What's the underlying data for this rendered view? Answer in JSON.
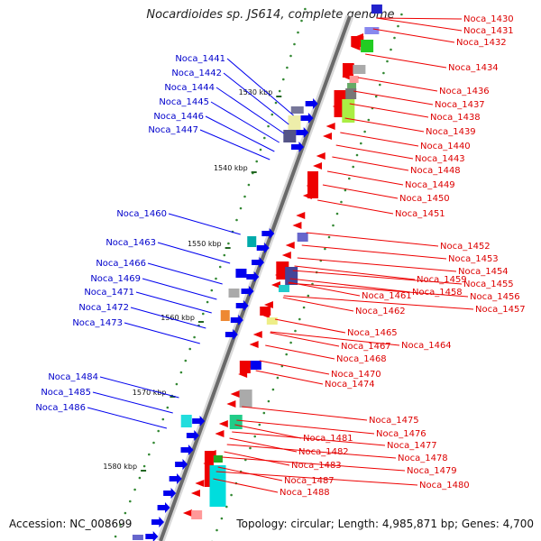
{
  "title": "Nocardioides sp. JS614, complete genome",
  "footer": {
    "accession": "Accession: NC_008699",
    "topology": "Topology: circular; Length: 4,985,871 bp; Genes: 4,700"
  },
  "ticks": [
    "1530 kbp",
    "1540 kbp",
    "1550 kbp",
    "1560 kbp",
    "1570 kbp",
    "1580 kbp"
  ],
  "left_labels": [
    "Noca_1441",
    "Noca_1442",
    "Noca_1444",
    "Noca_1445",
    "Noca_1446",
    "Noca_1447",
    "Noca_1460",
    "Noca_1463",
    "Noca_1466",
    "Noca_1469",
    "Noca_1471",
    "Noca_1472",
    "Noca_1473",
    "Noca_1484",
    "Noca_1485",
    "Noca_1486"
  ],
  "right_labels": [
    "Noca_1430",
    "Noca_1431",
    "Noca_1432",
    "Noca_1434",
    "Noca_1436",
    "Noca_1437",
    "Noca_1438",
    "Noca_1439",
    "Noca_1440",
    "Noca_1443",
    "Noca_1448",
    "Noca_1449",
    "Noca_1450",
    "Noca_1451",
    "Noca_1452",
    "Noca_1453",
    "Noca_1454",
    "Noca_1455",
    "Noca_1456",
    "Noca_1457",
    "Noca_1458",
    "Noca_1459",
    "Noca_1461",
    "Noca_1462",
    "Noca_1464",
    "Noca_1465",
    "Noca_1467",
    "Noca_1468",
    "Noca_1470",
    "Noca_1474",
    "Noca_1475",
    "Noca_1476",
    "Noca_1477",
    "Noca_1478",
    "Noca_1479",
    "Noca_1480",
    "Noca_1481",
    "Noca_1482",
    "Noca_1483",
    "Noca_1487",
    "Noca_1488"
  ],
  "colors": {
    "forward_strand": "#0000ee",
    "reverse_strand": "#ee0000",
    "backbone": "#666666",
    "gc_track": "#338833",
    "left_label": "#0000cc",
    "right_label": "#dd0000"
  }
}
